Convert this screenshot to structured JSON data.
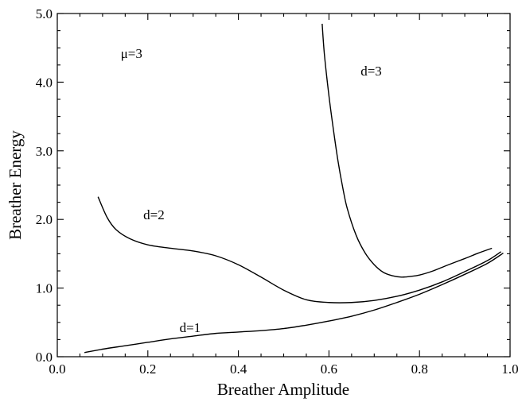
{
  "chart_data": {
    "type": "line",
    "xlabel": "Breather Amplitude",
    "ylabel": "Breather Energy",
    "xlim": [
      0.0,
      1.0
    ],
    "ylim": [
      0.0,
      5.0
    ],
    "x_ticks": [
      "0.0",
      "0.2",
      "0.4",
      "0.6",
      "0.8",
      "1.0"
    ],
    "y_ticks": [
      "0.0",
      "1.0",
      "2.0",
      "3.0",
      "4.0",
      "5.0"
    ],
    "annotation": "μ=3",
    "grid": false,
    "series": [
      {
        "name": "d=1",
        "x": [
          0.06,
          0.1,
          0.15,
          0.2,
          0.25,
          0.3,
          0.35,
          0.4,
          0.45,
          0.5,
          0.55,
          0.6,
          0.65,
          0.7,
          0.75,
          0.8,
          0.85,
          0.9,
          0.95,
          0.985
        ],
        "y": [
          0.06,
          0.11,
          0.16,
          0.21,
          0.26,
          0.3,
          0.34,
          0.36,
          0.38,
          0.41,
          0.46,
          0.52,
          0.59,
          0.68,
          0.79,
          0.91,
          1.05,
          1.2,
          1.36,
          1.51
        ]
      },
      {
        "name": "d=2",
        "x": [
          0.09,
          0.11,
          0.13,
          0.16,
          0.2,
          0.25,
          0.3,
          0.35,
          0.4,
          0.45,
          0.5,
          0.55,
          0.6,
          0.65,
          0.7,
          0.75,
          0.8,
          0.85,
          0.9,
          0.95,
          0.98
        ],
        "y": [
          2.33,
          2.03,
          1.85,
          1.72,
          1.63,
          1.58,
          1.54,
          1.47,
          1.34,
          1.16,
          0.97,
          0.83,
          0.79,
          0.79,
          0.82,
          0.88,
          0.97,
          1.09,
          1.24,
          1.4,
          1.53
        ]
      },
      {
        "name": "d=3",
        "x": [
          0.585,
          0.59,
          0.6,
          0.61,
          0.62,
          0.63,
          0.64,
          0.66,
          0.68,
          0.7,
          0.72,
          0.74,
          0.76,
          0.78,
          0.8,
          0.83,
          0.86,
          0.9,
          0.93,
          0.96
        ],
        "y": [
          4.85,
          4.4,
          3.8,
          3.3,
          2.85,
          2.48,
          2.17,
          1.77,
          1.51,
          1.34,
          1.23,
          1.18,
          1.16,
          1.17,
          1.19,
          1.25,
          1.33,
          1.43,
          1.51,
          1.58
        ]
      }
    ],
    "curve_labels": [
      {
        "text": "d=1",
        "x": 0.27,
        "y": 0.36
      },
      {
        "text": "d=2",
        "x": 0.19,
        "y": 2.0
      },
      {
        "text": "d=3",
        "x": 0.67,
        "y": 4.1
      }
    ],
    "annotation_pos": {
      "x": 0.14,
      "y": 4.35
    }
  }
}
